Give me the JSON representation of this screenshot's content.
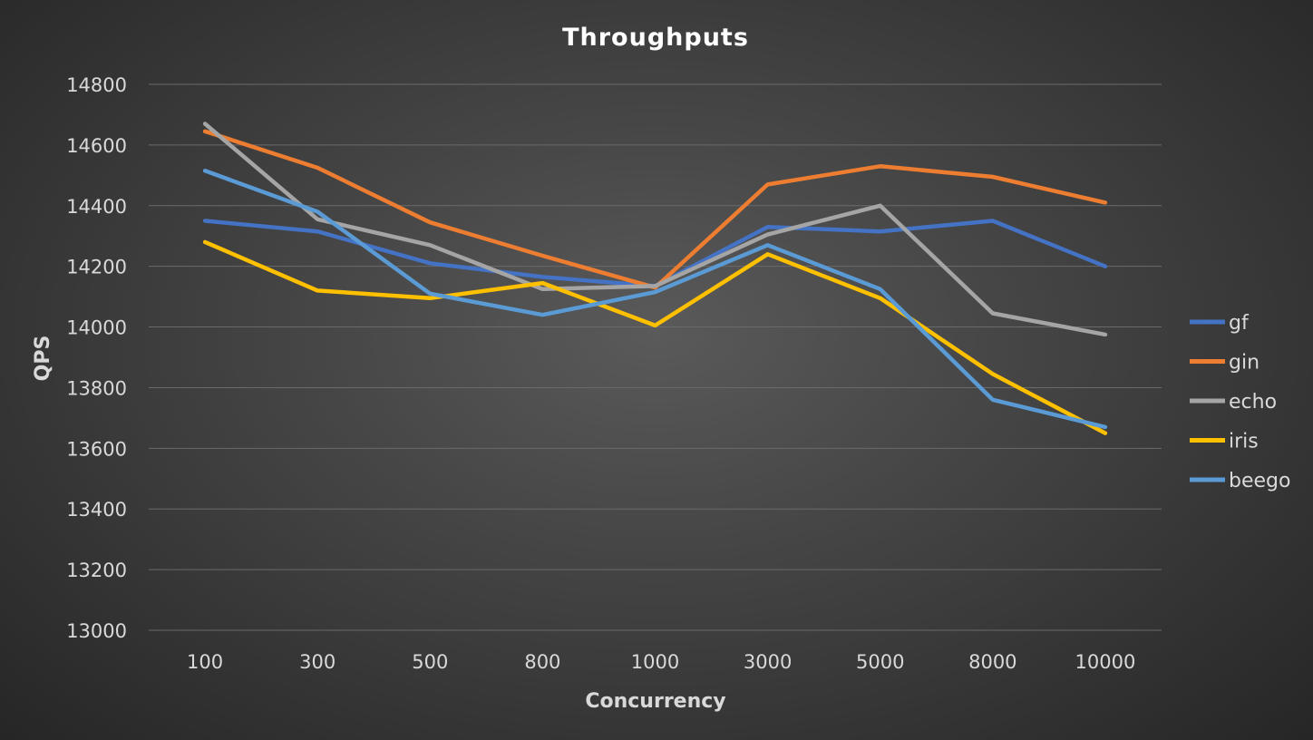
{
  "chart_data": {
    "type": "line",
    "title": "Throughputs",
    "xlabel": "Concurrency",
    "ylabel": "QPS",
    "categories": [
      "100",
      "300",
      "500",
      "800",
      "1000",
      "3000",
      "5000",
      "8000",
      "10000"
    ],
    "ylim": [
      13000,
      14800
    ],
    "yticks": [
      13000,
      13200,
      13400,
      13600,
      13800,
      14000,
      14200,
      14400,
      14600,
      14800
    ],
    "grid": true,
    "legend_position": "right",
    "series": [
      {
        "name": "gf",
        "color": "#4472c4",
        "values": [
          14350,
          14315,
          14210,
          14165,
          14135,
          14330,
          14315,
          14350,
          14200
        ]
      },
      {
        "name": "gin",
        "color": "#ed7d31",
        "values": [
          14645,
          14525,
          14345,
          14235,
          14130,
          14470,
          14530,
          14495,
          14410
        ]
      },
      {
        "name": "echo",
        "color": "#a5a5a5",
        "values": [
          14670,
          14355,
          14270,
          14125,
          14135,
          14305,
          14400,
          14045,
          13975
        ]
      },
      {
        "name": "iris",
        "color": "#ffc000",
        "values": [
          14280,
          14120,
          14095,
          14145,
          14005,
          14240,
          14095,
          13845,
          13650
        ]
      },
      {
        "name": "beego",
        "color": "#5b9bd5",
        "values": [
          14515,
          14380,
          14110,
          14040,
          14115,
          14270,
          14125,
          13760,
          13670
        ]
      }
    ]
  }
}
